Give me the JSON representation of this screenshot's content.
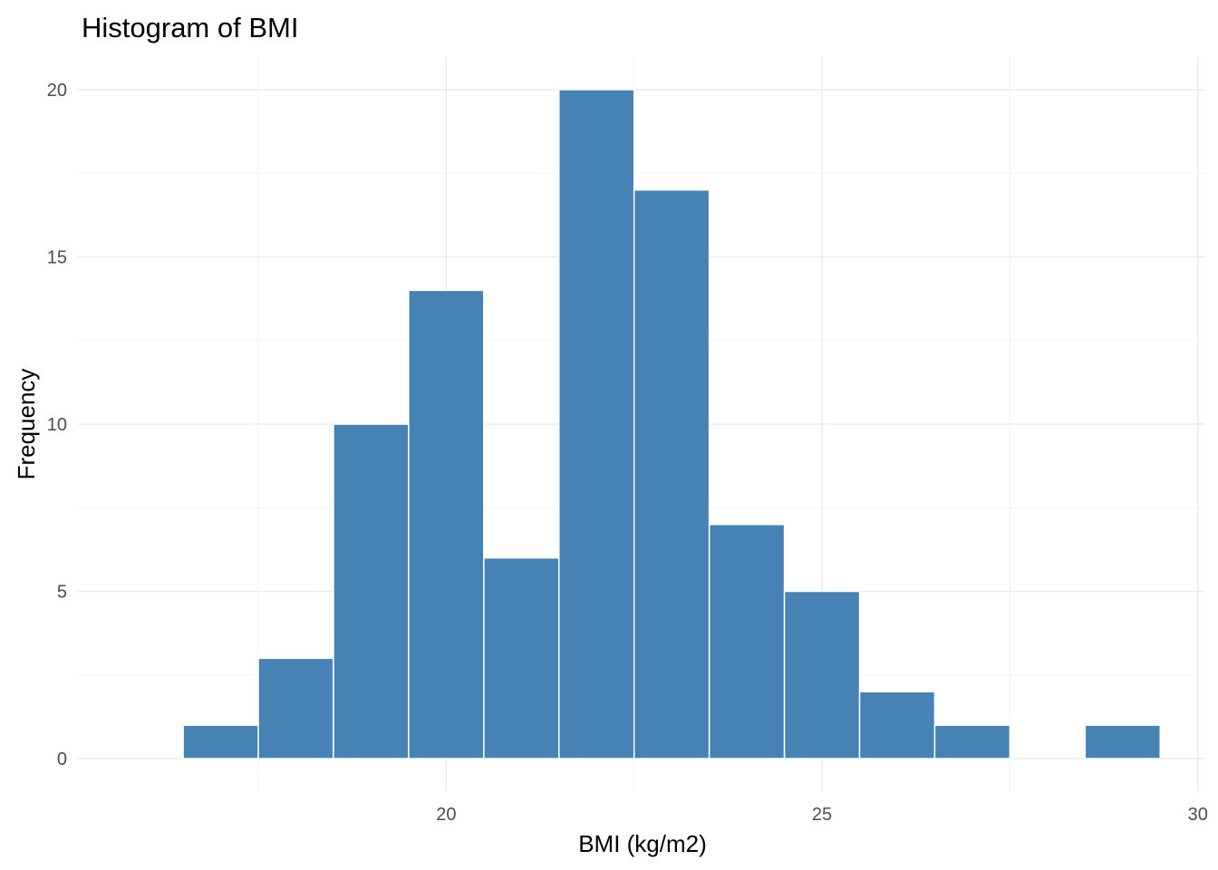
{
  "chart_data": {
    "type": "bar",
    "title": "Histogram of BMI",
    "xlabel": "BMI (kg/m2)",
    "ylabel": "Frequency",
    "bins": [
      {
        "x0": 16.5,
        "x1": 17.5,
        "count": 1
      },
      {
        "x0": 17.5,
        "x1": 18.5,
        "count": 3
      },
      {
        "x0": 18.5,
        "x1": 19.5,
        "count": 10
      },
      {
        "x0": 19.5,
        "x1": 20.5,
        "count": 14
      },
      {
        "x0": 20.5,
        "x1": 21.5,
        "count": 6
      },
      {
        "x0": 21.5,
        "x1": 22.5,
        "count": 20
      },
      {
        "x0": 22.5,
        "x1": 23.5,
        "count": 17
      },
      {
        "x0": 23.5,
        "x1": 24.5,
        "count": 7
      },
      {
        "x0": 24.5,
        "x1": 25.5,
        "count": 5
      },
      {
        "x0": 25.5,
        "x1": 26.5,
        "count": 2
      },
      {
        "x0": 26.5,
        "x1": 27.5,
        "count": 1
      },
      {
        "x0": 27.5,
        "x1": 28.5,
        "count": 0
      },
      {
        "x0": 28.5,
        "x1": 29.5,
        "count": 1
      }
    ],
    "xlim": [
      15.1,
      30.1
    ],
    "ylim": [
      -1.0,
      21.0
    ],
    "x_ticks": [
      20,
      25,
      30
    ],
    "x_tick_labels": [
      "20",
      "25",
      "30"
    ],
    "y_ticks": [
      0,
      5,
      10,
      15,
      20
    ],
    "y_tick_labels": [
      "0",
      "5",
      "10",
      "15",
      "20"
    ],
    "x_minor_ticks": [
      17.5,
      22.5,
      27.5
    ],
    "y_minor_ticks": [
      2.5,
      7.5,
      12.5,
      17.5
    ],
    "bar_color": "#4682b4",
    "bar_outline": "#ffffff",
    "grid": true,
    "legend": "none"
  }
}
